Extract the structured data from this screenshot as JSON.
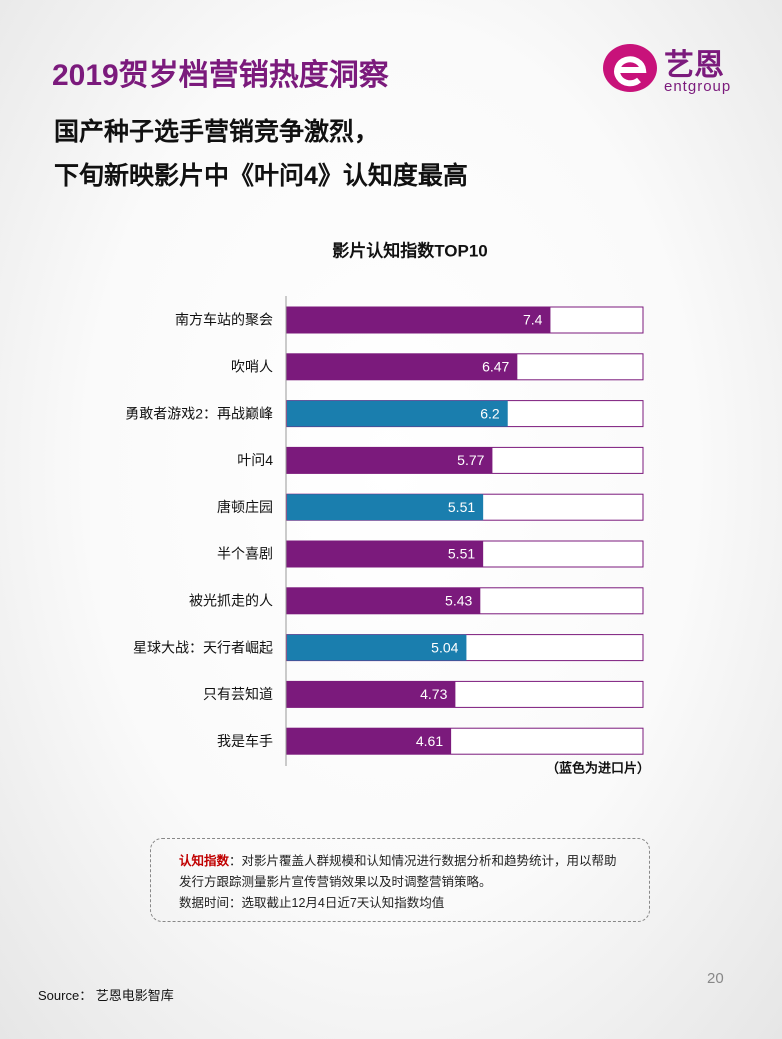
{
  "header": {
    "title": "2019贺岁档营销热度洞察",
    "subtitle_lines": [
      "国产种子选手营销竞争激烈，",
      "下旬新映影片中《叶问4》认知度最高"
    ],
    "logo_cn": "艺恩",
    "logo_en": "entgroup"
  },
  "chart_data": {
    "type": "bar",
    "orientation": "horizontal",
    "title": "影片认知指数TOP10",
    "categories": [
      "南方车站的聚会",
      "吹哨人",
      "勇敢者游戏2：再战巅峰",
      "叶问4",
      "唐顿庄园",
      "半个喜剧",
      "被光抓走的人",
      "星球大战：天行者崛起",
      "只有芸知道",
      "我是车手"
    ],
    "values": [
      7.4,
      6.47,
      6.2,
      5.77,
      5.51,
      5.51,
      5.43,
      5.04,
      4.73,
      4.61
    ],
    "colors": [
      "#7b1a7c",
      "#7b1a7c",
      "#1a7eae",
      "#7b1a7c",
      "#1a7eae",
      "#7b1a7c",
      "#7b1a7c",
      "#1a7eae",
      "#7b1a7c",
      "#7b1a7c"
    ],
    "track_color": "#7b1a7c",
    "xlim": [
      0,
      10
    ],
    "annotation": "（蓝色为进口片）"
  },
  "note": {
    "term": "认知指数",
    "definition": "：对影片覆盖人群规模和认知情况进行数据分析和趋势统计，用以帮助发行方跟踪测量影片宣传营销效果以及时调整营销策略。",
    "data_time": "数据时间：选取截止12月4日近7天认知指数均值"
  },
  "footer": {
    "source": "Source： 艺恩电影智库",
    "page": "20"
  }
}
